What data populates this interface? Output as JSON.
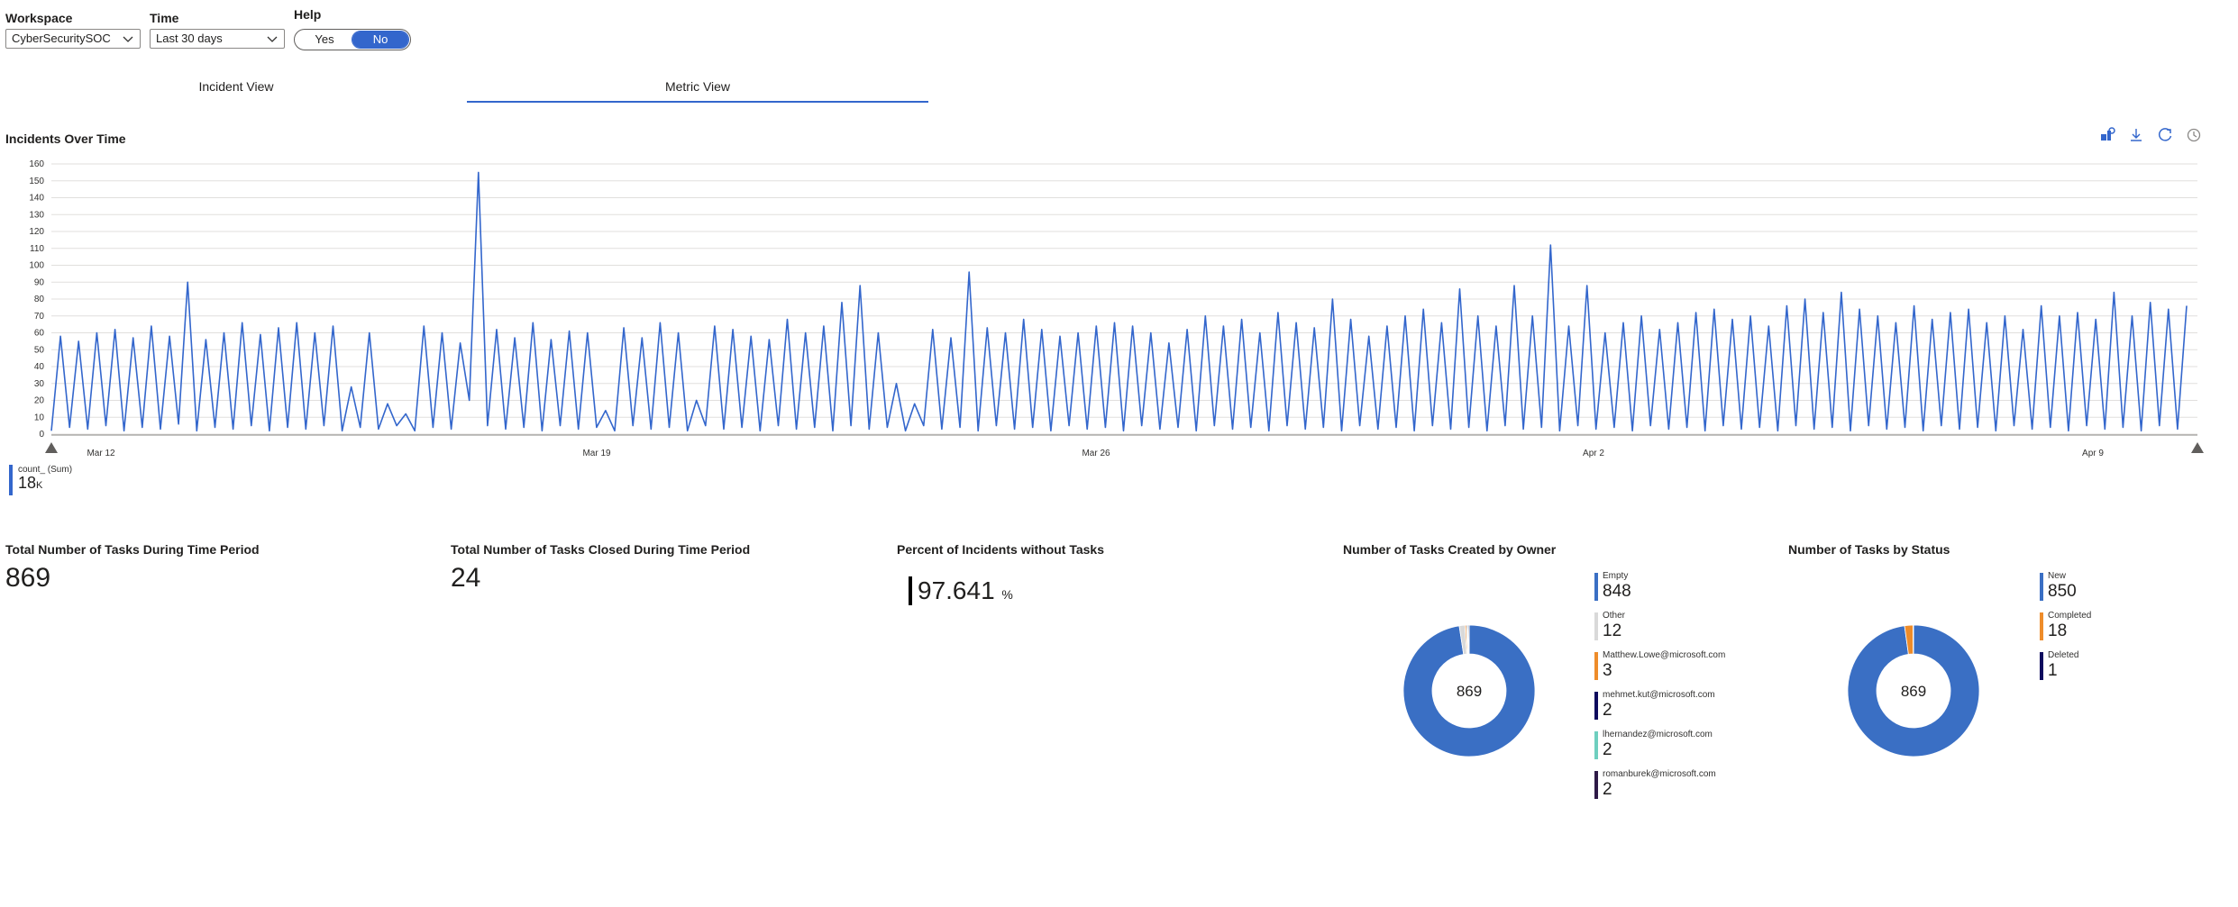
{
  "params": {
    "workspace": {
      "label": "Workspace",
      "value": "CyberSecuritySOC"
    },
    "time": {
      "label": "Time",
      "value": "Last 30 days"
    },
    "help": {
      "label": "Help",
      "yes": "Yes",
      "no": "No",
      "selected": "No"
    }
  },
  "tabs": [
    {
      "label": "Incident View",
      "active": false
    },
    {
      "label": "Metric View",
      "active": true
    }
  ],
  "incidents_chart": {
    "title": "Incidents Over Time",
    "legend": {
      "name": "count_ (Sum)",
      "value": "18",
      "unit": "K"
    },
    "chart_data": {
      "type": "line",
      "title": "Incidents Over Time",
      "ylim": [
        0,
        160
      ],
      "yticks": [
        0,
        10,
        20,
        30,
        40,
        50,
        60,
        70,
        80,
        90,
        100,
        110,
        120,
        130,
        140,
        150,
        160
      ],
      "xtick_labels": [
        "Mar 12",
        "Mar 19",
        "Mar 26",
        "Apr 2",
        "Apr 9"
      ],
      "grid": true,
      "series": [
        {
          "color": "#3366cc",
          "values": [
            2,
            58,
            4,
            55,
            3,
            60,
            5,
            62,
            2,
            57,
            4,
            64,
            3,
            58,
            6,
            90,
            2,
            56,
            4,
            60,
            3,
            66,
            5,
            59,
            2,
            63,
            4,
            66,
            3,
            60,
            5,
            64,
            2,
            28,
            4,
            60,
            3,
            18,
            5,
            12,
            2,
            64,
            4,
            60,
            3,
            54,
            20,
            155,
            5,
            62,
            3,
            57,
            4,
            66,
            2,
            56,
            5,
            61,
            3,
            60,
            4,
            14,
            2,
            63,
            5,
            57,
            3,
            66,
            4,
            60,
            2,
            20,
            5,
            64,
            3,
            62,
            4,
            58,
            2,
            56,
            5,
            68,
            3,
            60,
            4,
            64,
            2,
            78,
            5,
            88,
            3,
            60,
            4,
            30,
            2,
            18,
            5,
            62,
            3,
            57,
            4,
            96,
            2,
            63,
            5,
            60,
            3,
            68,
            4,
            62,
            2,
            58,
            5,
            60,
            3,
            64,
            4,
            66,
            2,
            64,
            5,
            60,
            3,
            54,
            4,
            62,
            2,
            70,
            5,
            64,
            3,
            68,
            4,
            60,
            2,
            72,
            5,
            66,
            3,
            63,
            4,
            80,
            2,
            68,
            5,
            58,
            3,
            64,
            4,
            70,
            2,
            74,
            5,
            66,
            3,
            86,
            4,
            70,
            2,
            64,
            5,
            88,
            3,
            70,
            4,
            112,
            2,
            64,
            5,
            88,
            3,
            60,
            4,
            66,
            2,
            70,
            5,
            62,
            3,
            66,
            4,
            72,
            2,
            74,
            5,
            68,
            3,
            70,
            4,
            64,
            2,
            76,
            5,
            80,
            3,
            72,
            4,
            84,
            2,
            74,
            5,
            70,
            3,
            66,
            4,
            76,
            2,
            68,
            5,
            72,
            3,
            74,
            4,
            66,
            2,
            70,
            5,
            62,
            3,
            76,
            4,
            70,
            2,
            72,
            5,
            68,
            3,
            84,
            4,
            70,
            2,
            78,
            5,
            74,
            3,
            76
          ],
          "points": 240
        }
      ]
    }
  },
  "tiles": {
    "total_tasks": {
      "title": "Total Number of Tasks During Time Period",
      "value": "869"
    },
    "closed_tasks": {
      "title": "Total Number of Tasks Closed During Time Period",
      "value": "24"
    },
    "pct_without_tasks": {
      "title": "Percent of Incidents without Tasks",
      "value": "97.641",
      "unit": "%"
    },
    "by_owner": {
      "title": "Number of Tasks Created by Owner",
      "center": "869",
      "chart_data": {
        "type": "pie",
        "categories": [
          "Empty",
          "Other",
          "Matthew.Lowe@microsoft.com",
          "mehmet.kut@microsoft.com",
          "lhernandez@microsoft.com",
          "romanburek@microsoft.com"
        ],
        "values": [
          848,
          12,
          3,
          2,
          2,
          2
        ],
        "colors": [
          "#3a6fc4",
          "#d9d9d9",
          "#ee8c2a",
          "#0f0b5e",
          "#6ecfbf",
          "#2e1a47"
        ]
      },
      "legend": [
        {
          "name": "Empty",
          "value": "848",
          "color": "#3a6fc4"
        },
        {
          "name": "Other",
          "value": "12",
          "color": "#d9d9d9"
        },
        {
          "name": "Matthew.Lowe@microsoft.com",
          "value": "3",
          "color": "#ee8c2a"
        },
        {
          "name": "mehmet.kut@microsoft.com",
          "value": "2",
          "color": "#0f0b5e"
        },
        {
          "name": "lhernandez@microsoft.com",
          "value": "2",
          "color": "#6ecfbf"
        },
        {
          "name": "romanburek@microsoft.com",
          "value": "2",
          "color": "#2e1a47"
        }
      ]
    },
    "by_status": {
      "title": "Number of Tasks by Status",
      "center": "869",
      "chart_data": {
        "type": "pie",
        "categories": [
          "New",
          "Completed",
          "Deleted"
        ],
        "values": [
          850,
          18,
          1
        ],
        "colors": [
          "#3a6fc4",
          "#ee8c2a",
          "#0f0b5e"
        ]
      },
      "legend": [
        {
          "name": "New",
          "value": "850",
          "color": "#3a6fc4"
        },
        {
          "name": "Completed",
          "value": "18",
          "color": "#ee8c2a"
        },
        {
          "name": "Deleted",
          "value": "1",
          "color": "#0f0b5e"
        }
      ]
    }
  }
}
